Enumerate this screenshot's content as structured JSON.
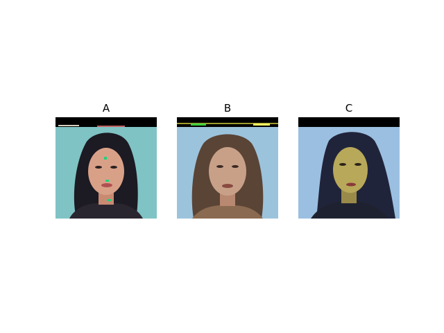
{
  "panels": [
    {
      "title": "A",
      "background": "#7fc3c4",
      "hair": "#1c1a22",
      "skin": "#d9a088",
      "shirt": "#2a2630",
      "top_band": "#000000"
    },
    {
      "title": "B",
      "background": "#9cc3dc",
      "hair": "#5a4436",
      "skin": "#c8a088",
      "shirt": "#8a6a50",
      "top_band": "#000000"
    },
    {
      "title": "C",
      "background": "#9bbfe0",
      "hair": "#20243a",
      "skin": "#b8a85a",
      "shirt": "#1e2230",
      "top_band": "#000000"
    }
  ]
}
